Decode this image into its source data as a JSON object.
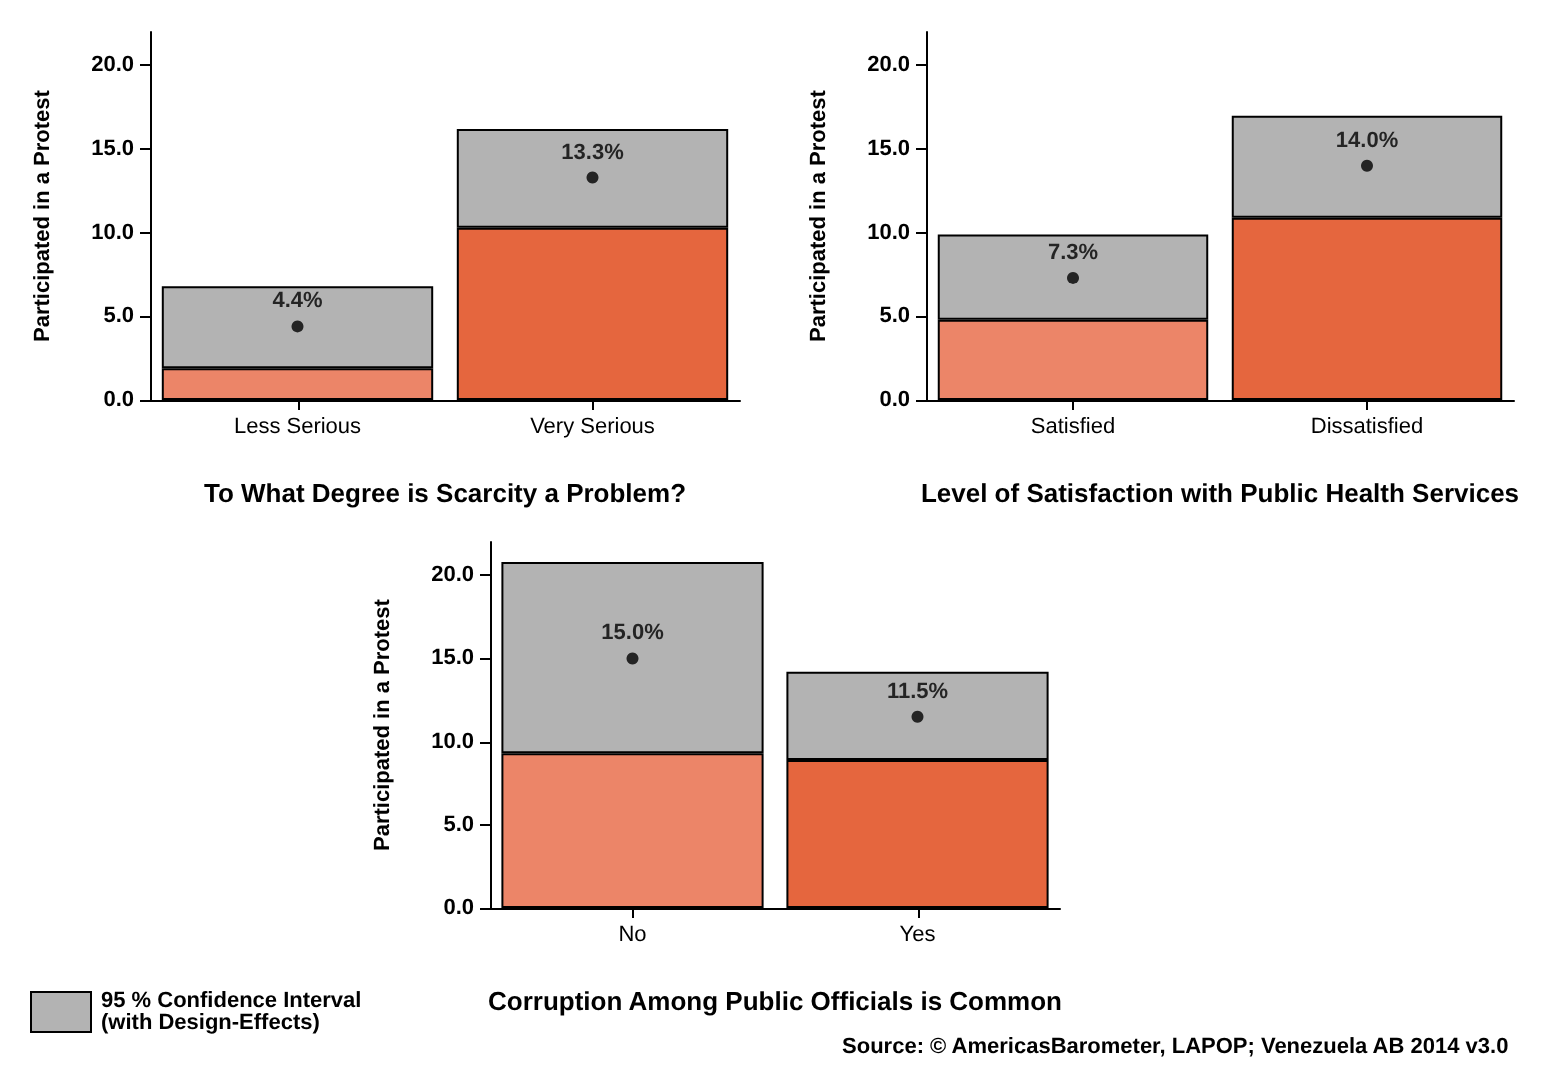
{
  "chart_data": [
    {
      "type": "bar",
      "stacked": true,
      "categories": [
        "Less Serious",
        "Very Serious"
      ],
      "xlabel": "To What Degree is Scarcity a Problem?",
      "ylabel": "Participated in a Protest",
      "ylim": [
        0,
        22
      ],
      "yticks": [
        {
          "value": 0,
          "label": "0.0"
        },
        {
          "value": 5,
          "label": "5.0"
        },
        {
          "value": 10,
          "label": "10.0"
        },
        {
          "value": 15,
          "label": "15.0"
        },
        {
          "value": 20,
          "label": "20.0"
        }
      ],
      "grid": false,
      "series": [
        {
          "colors": [
            "#ec8568",
            "#e5663e"
          ],
          "values": [
            1.9,
            10.3
          ]
        },
        {
          "color": "#b3b3b3",
          "values": [
            4.9,
            5.9
          ]
        },
        {
          "type": "scatter",
          "color": "#000000",
          "marker": "circle",
          "x": [
            "Less Serious",
            "Very Serious"
          ],
          "values": [
            4.4,
            13.3
          ],
          "value_labels": [
            "4.4%",
            "13.3%"
          ]
        }
      ]
    },
    {
      "type": "bar",
      "stacked": true,
      "categories": [
        "Satisfied",
        "Dissatisfied"
      ],
      "xlabel": "Level of Satisfaction with Public Health Services",
      "ylabel": "Participated in a Protest",
      "ylim": [
        0,
        22
      ],
      "yticks": [
        {
          "value": 0,
          "label": "0.0"
        },
        {
          "value": 5,
          "label": "5.0"
        },
        {
          "value": 10,
          "label": "10.0"
        },
        {
          "value": 15,
          "label": "15.0"
        },
        {
          "value": 20,
          "label": "20.0"
        }
      ],
      "grid": false,
      "series": [
        {
          "colors": [
            "#ec8568",
            "#e5663e"
          ],
          "values": [
            4.8,
            10.9
          ]
        },
        {
          "color": "#b3b3b3",
          "values": [
            5.1,
            6.1
          ]
        },
        {
          "type": "scatter",
          "color": "#000000",
          "marker": "circle",
          "x": [
            "Satisfied",
            "Dissatisfied"
          ],
          "values": [
            7.3,
            14.0
          ],
          "value_labels": [
            "7.3%",
            "14.0%"
          ]
        }
      ]
    },
    {
      "type": "bar",
      "stacked": true,
      "categories": [
        "No",
        "Yes"
      ],
      "xlabel": "Corruption Among Public Officials is Common",
      "ylabel": "Participated in a Protest",
      "ylim": [
        0,
        22
      ],
      "yticks": [
        {
          "value": 0,
          "label": "0.0"
        },
        {
          "value": 5,
          "label": "5.0"
        },
        {
          "value": 10,
          "label": "10.0"
        },
        {
          "value": 15,
          "label": "15.0"
        },
        {
          "value": 20,
          "label": "20.0"
        }
      ],
      "grid": false,
      "legend": "bottom left",
      "annotations": [
        "Source: © AmericasBarometer, LAPOP; Venezuela AB 2014 v3.0"
      ],
      "series": [
        {
          "colors": [
            "#ec8568",
            "#e5663e"
          ],
          "values": [
            9.3,
            8.9
          ]
        },
        {
          "name": "95 % Confidence Interval (with Design-Effects)",
          "color": "#b3b3b3",
          "values": [
            11.5,
            5.3
          ]
        },
        {
          "type": "scatter",
          "color": "#000000",
          "marker": "circle",
          "x": [
            "No",
            "Yes"
          ],
          "values": [
            15.0,
            11.5
          ],
          "value_labels": [
            "15.0%",
            "11.5%"
          ]
        }
      ]
    }
  ]
}
